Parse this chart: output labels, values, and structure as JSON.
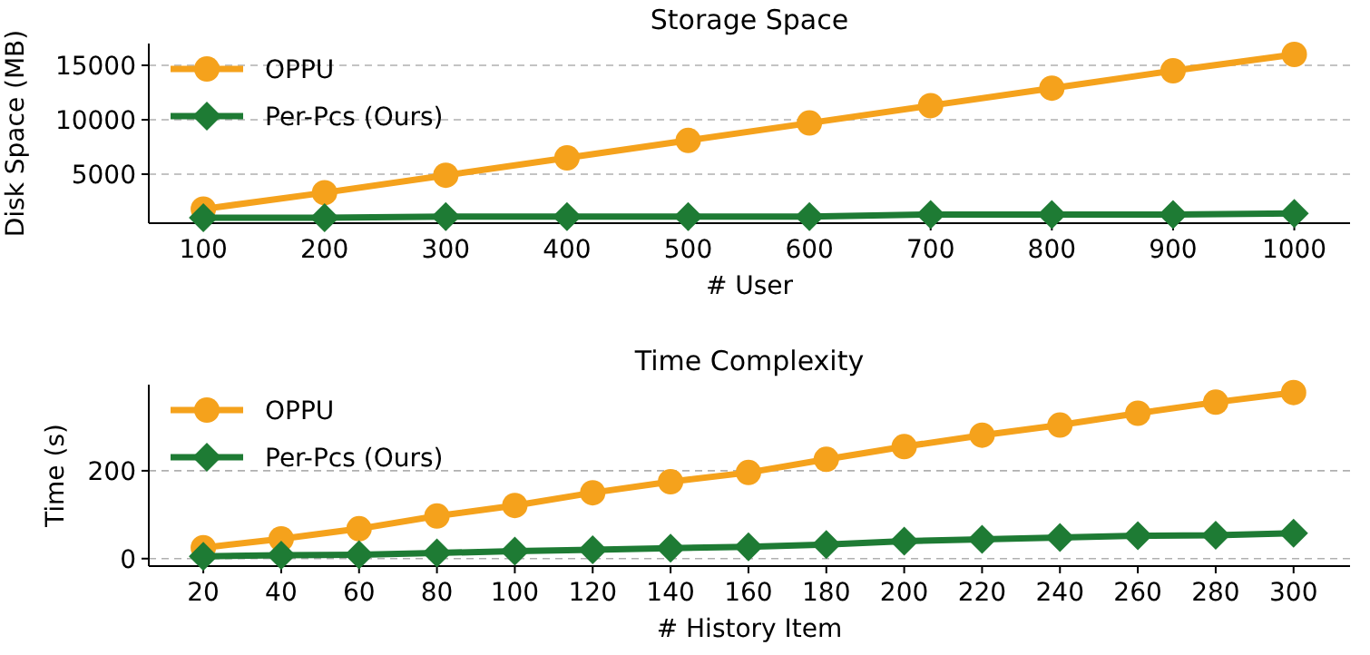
{
  "chart_data": [
    {
      "type": "line",
      "title": "Storage Space",
      "xlabel": "# User",
      "ylabel": "Disk Space (MB)",
      "x": [
        100,
        200,
        300,
        400,
        500,
        600,
        700,
        800,
        900,
        1000
      ],
      "xlim": [
        55,
        1046
      ],
      "xticks": [
        100,
        200,
        300,
        400,
        500,
        600,
        700,
        800,
        900,
        1000
      ],
      "ylim": [
        500,
        17000
      ],
      "yticks": [
        5000,
        10000,
        15000
      ],
      "grid": "y",
      "legend": "top left",
      "series": [
        {
          "name": "OPPU",
          "color": "#f5a21c",
          "marker": "circle",
          "values": [
            1800,
            3300,
            4900,
            6500,
            8100,
            9700,
            11300,
            12900,
            14500,
            16000
          ]
        },
        {
          "name": "Per-Pcs (Ours)",
          "color": "#1e7b34",
          "marker": "diamond",
          "values": [
            1000,
            1000,
            1100,
            1100,
            1100,
            1100,
            1300,
            1300,
            1300,
            1400
          ]
        }
      ]
    },
    {
      "type": "line",
      "title": "Time Complexity",
      "xlabel": "# History Item",
      "ylabel": "Time (s)",
      "x": [
        20,
        40,
        60,
        80,
        100,
        120,
        140,
        160,
        180,
        200,
        220,
        240,
        260,
        280,
        300
      ],
      "xlim": [
        6,
        314.5
      ],
      "xticks": [
        20,
        40,
        60,
        80,
        100,
        120,
        140,
        160,
        180,
        200,
        220,
        240,
        260,
        280,
        300
      ],
      "ylim": [
        -17,
        396
      ],
      "yticks": [
        0,
        200
      ],
      "grid": "y",
      "legend": "top left",
      "series": [
        {
          "name": "OPPU",
          "color": "#f5a21c",
          "marker": "circle",
          "values": [
            25,
            45,
            68,
            97,
            121,
            150,
            175,
            196,
            226,
            255,
            281,
            304,
            331,
            356,
            378
          ]
        },
        {
          "name": "Per-Pcs (Ours)",
          "color": "#1e7b34",
          "marker": "diamond",
          "values": [
            5,
            8,
            9,
            13,
            17,
            20,
            24,
            27,
            32,
            40,
            44,
            48,
            52,
            53,
            58
          ]
        }
      ]
    }
  ]
}
